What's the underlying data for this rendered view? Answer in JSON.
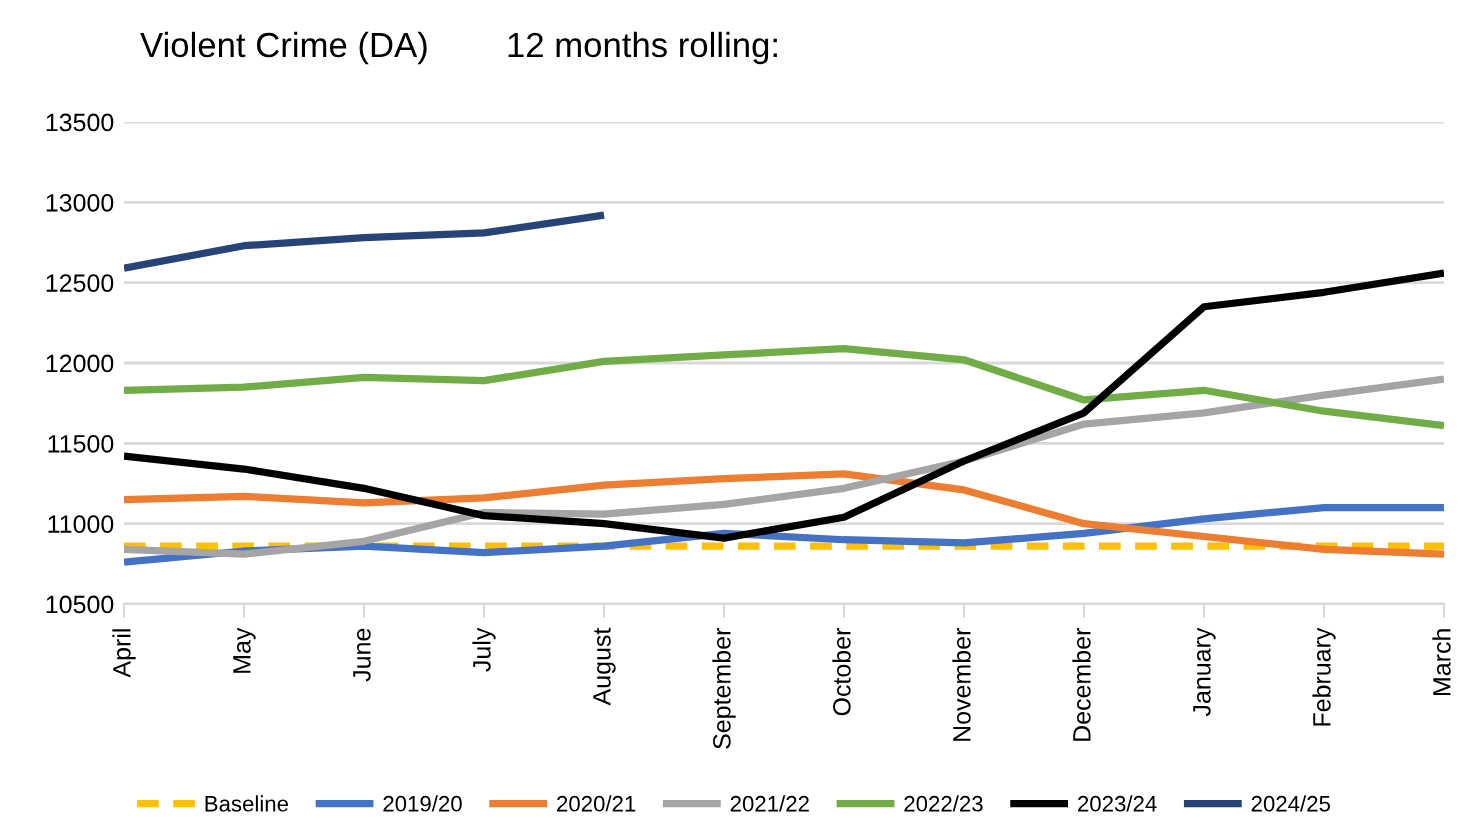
{
  "chart_data": {
    "type": "line",
    "title": "Violent Crime (DA)        12 months rolling:",
    "categories": [
      "April",
      "May",
      "June",
      "July",
      "August",
      "September",
      "October",
      "November",
      "December",
      "January",
      "February",
      "March"
    ],
    "series": [
      {
        "name": "Baseline",
        "color": "#ffc000",
        "line_style": "dashed",
        "values": [
          10860,
          10860,
          10860,
          10860,
          10860,
          10860,
          10860,
          10860,
          10860,
          10860,
          10860,
          10860
        ]
      },
      {
        "name": "2019/20",
        "color": "#4472c4",
        "values": [
          10760,
          10830,
          10860,
          10820,
          10860,
          10940,
          10900,
          10880,
          10940,
          11030,
          11100,
          11100
        ]
      },
      {
        "name": "2020/21",
        "color": "#ed7d31",
        "values": [
          11150,
          11170,
          11130,
          11160,
          11240,
          11280,
          11310,
          11210,
          11000,
          10920,
          10840,
          10810
        ]
      },
      {
        "name": "2021/22",
        "color": "#a5a5a5",
        "values": [
          10840,
          10810,
          10890,
          11070,
          11060,
          11120,
          11220,
          11390,
          11620,
          11690,
          11800,
          11900
        ]
      },
      {
        "name": "2022/23",
        "color": "#70ad47",
        "values": [
          11830,
          11850,
          11910,
          11890,
          12010,
          12050,
          12090,
          12020,
          11770,
          11830,
          11700,
          11610
        ]
      },
      {
        "name": "2023/24",
        "color": "#000000",
        "values": [
          11420,
          11340,
          11220,
          11050,
          11000,
          10910,
          11040,
          11390,
          11690,
          12350,
          12440,
          12560
        ]
      },
      {
        "name": "2024/25",
        "color": "#264478",
        "values": [
          12590,
          12730,
          12780,
          12810,
          12920,
          null,
          null,
          null,
          null,
          null,
          null,
          null
        ]
      }
    ],
    "ylim": [
      10500,
      13500
    ],
    "yticks": [
      10500,
      11000,
      11500,
      12000,
      12500,
      13000,
      13500
    ],
    "grid": "y",
    "legend": "bottom",
    "line_style": "solid",
    "marker": "none"
  }
}
